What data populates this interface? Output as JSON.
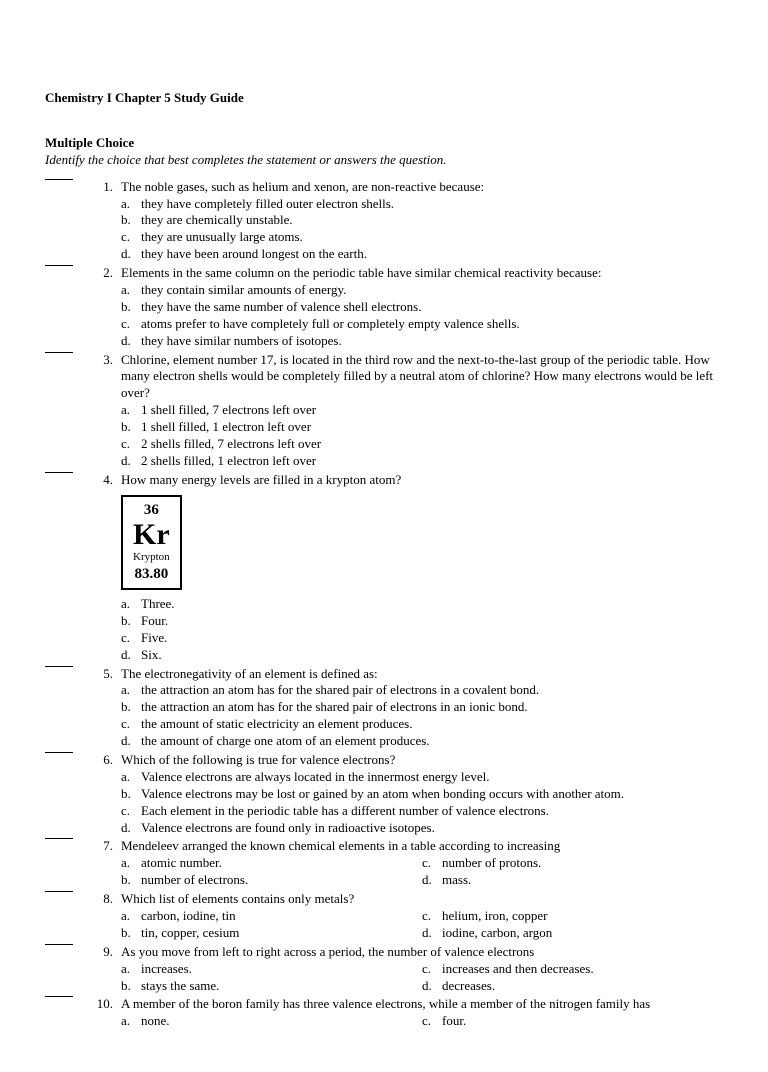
{
  "title": "Chemistry I Chapter 5 Study Guide",
  "section": {
    "head": "Multiple Choice",
    "sub": "Identify the choice that best completes the statement or answers the question."
  },
  "element": {
    "number": "36",
    "symbol": "Kr",
    "name": "Krypton",
    "mass": "83.80"
  },
  "questions": [
    {
      "n": "1.",
      "stem": "The noble gases, such as helium and xenon, are non-reactive because:",
      "opts": [
        {
          "l": "a.",
          "t": "they have completely filled outer electron shells."
        },
        {
          "l": "b.",
          "t": "they are chemically unstable."
        },
        {
          "l": "c.",
          "t": "they are unusually large atoms."
        },
        {
          "l": "d.",
          "t": "they have been around longest on the earth."
        }
      ]
    },
    {
      "n": "2.",
      "stem": "Elements in the same column on the periodic table have similar chemical reactivity because:",
      "opts": [
        {
          "l": "a.",
          "t": "they contain similar amounts of energy."
        },
        {
          "l": "b.",
          "t": "they have the same number of valence shell electrons."
        },
        {
          "l": "c.",
          "t": "atoms prefer to have completely full or completely empty valence shells."
        },
        {
          "l": "d.",
          "t": "they have similar numbers of isotopes."
        }
      ]
    },
    {
      "n": "3.",
      "stem": "Chlorine, element number 17, is located in the third row and the next-to-the-last group of the periodic table. How many electron shells would be completely filled by a neutral atom of chlorine? How many electrons would be left over?",
      "opts": [
        {
          "l": "a.",
          "t": "1 shell filled, 7 electrons left over"
        },
        {
          "l": "b.",
          "t": "1 shell filled, 1 electron left over"
        },
        {
          "l": "c.",
          "t": "2 shells filled, 7 electrons left over"
        },
        {
          "l": "d.",
          "t": "2 shells filled, 1 electron left over"
        }
      ]
    },
    {
      "n": "4.",
      "stem": "How many energy levels are filled in a krypton atom?",
      "opts": [
        {
          "l": "a.",
          "t": "Three."
        },
        {
          "l": "b.",
          "t": "Four."
        },
        {
          "l": "c.",
          "t": "Five."
        },
        {
          "l": "d.",
          "t": "Six."
        }
      ]
    },
    {
      "n": "5.",
      "stem": "The electronegativity of an element is defined as:",
      "opts": [
        {
          "l": "a.",
          "t": "the attraction an atom has for the shared pair of electrons in a covalent bond."
        },
        {
          "l": "b.",
          "t": "the attraction an atom has for the shared pair of electrons in an ionic bond."
        },
        {
          "l": "c.",
          "t": "the amount of static electricity an element produces."
        },
        {
          "l": "d.",
          "t": "the amount of charge one atom of an element produces."
        }
      ]
    },
    {
      "n": "6.",
      "stem": "Which of the following is true for valence electrons?",
      "opts": [
        {
          "l": "a.",
          "t": "Valence electrons are always located in the innermost energy level."
        },
        {
          "l": "b.",
          "t": "Valence electrons may be lost or gained by an atom when bonding occurs with another atom."
        },
        {
          "l": "c.",
          "t": "Each element in the periodic table has a different number of valence electrons."
        },
        {
          "l": "d.",
          "t": "Valence electrons are found only in radioactive isotopes."
        }
      ]
    },
    {
      "n": "7.",
      "stem": "Mendeleev arranged the known chemical elements in a table according to increasing",
      "two_col": true,
      "left": [
        {
          "l": "a.",
          "t": "atomic number."
        },
        {
          "l": "b.",
          "t": "number of electrons."
        }
      ],
      "right": [
        {
          "l": "c.",
          "t": "number of protons."
        },
        {
          "l": "d.",
          "t": "mass."
        }
      ]
    },
    {
      "n": "8.",
      "stem": "Which list of elements contains only metals?",
      "two_col": true,
      "left": [
        {
          "l": "a.",
          "t": "carbon, iodine, tin"
        },
        {
          "l": "b.",
          "t": "tin, copper, cesium"
        }
      ],
      "right": [
        {
          "l": "c.",
          "t": "helium, iron, copper"
        },
        {
          "l": "d.",
          "t": "iodine, carbon, argon"
        }
      ]
    },
    {
      "n": "9.",
      "stem": "As you move from left to right across a period, the number of valence electrons",
      "two_col": true,
      "left": [
        {
          "l": "a.",
          "t": "increases."
        },
        {
          "l": "b.",
          "t": "stays the same."
        }
      ],
      "right": [
        {
          "l": "c.",
          "t": "increases and then decreases."
        },
        {
          "l": "d.",
          "t": "decreases."
        }
      ]
    },
    {
      "n": "10.",
      "stem": "A member of the boron family has three valence electrons, while a member of the nitrogen family has",
      "two_col": true,
      "left": [
        {
          "l": "a.",
          "t": "none."
        }
      ],
      "right": [
        {
          "l": "c.",
          "t": "four."
        }
      ]
    }
  ]
}
